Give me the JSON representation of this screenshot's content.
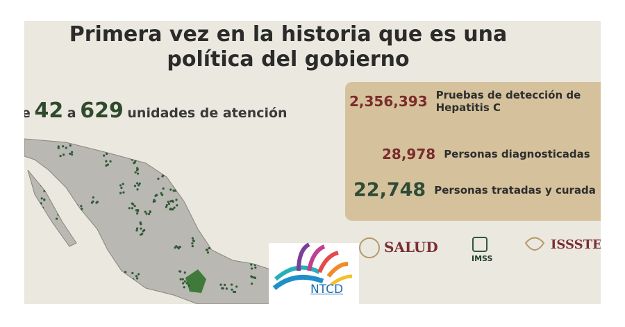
{
  "slide": {
    "title": "Primera vez en la historia que es una política del gobierno",
    "units": {
      "prefix": "e",
      "from": "42",
      "joiner": "a",
      "to": "629",
      "label": "unidades de atención"
    },
    "stats": [
      {
        "value": "2,356,393",
        "label": "Pruebas de detección de Hepatitis C"
      },
      {
        "value": "28,978",
        "label": "Personas diagnosticadas"
      },
      {
        "value": "22,748",
        "label": "Personas tratadas y curada"
      }
    ],
    "logos": {
      "salud": "SALUD",
      "imss": "IMSS",
      "issste": "ISSSTE"
    },
    "watermark": "NTCD"
  }
}
